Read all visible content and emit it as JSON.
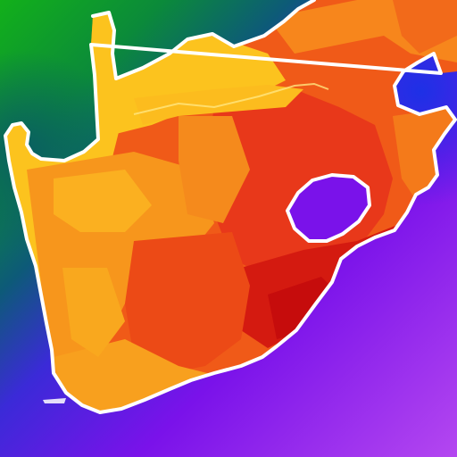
{
  "image": {
    "kind": "app-icon",
    "subject": "map-of-south-africa",
    "style": "heatmap regions with white coastline outline on rainbow gradient background"
  },
  "colors": {
    "bg_green": "#12b01a",
    "bg_teal": "#0a6e5a",
    "bg_blue": "#1e30e6",
    "bg_purple": "#7a12ea",
    "bg_violet": "#b447f0",
    "map_yellow": "#fcc31e",
    "map_orange": "#f7861c",
    "map_red_orange": "#f05a18",
    "map_red": "#e42814",
    "map_deep_red": "#cc0c0c",
    "outline": "#ffffff"
  },
  "legend": []
}
